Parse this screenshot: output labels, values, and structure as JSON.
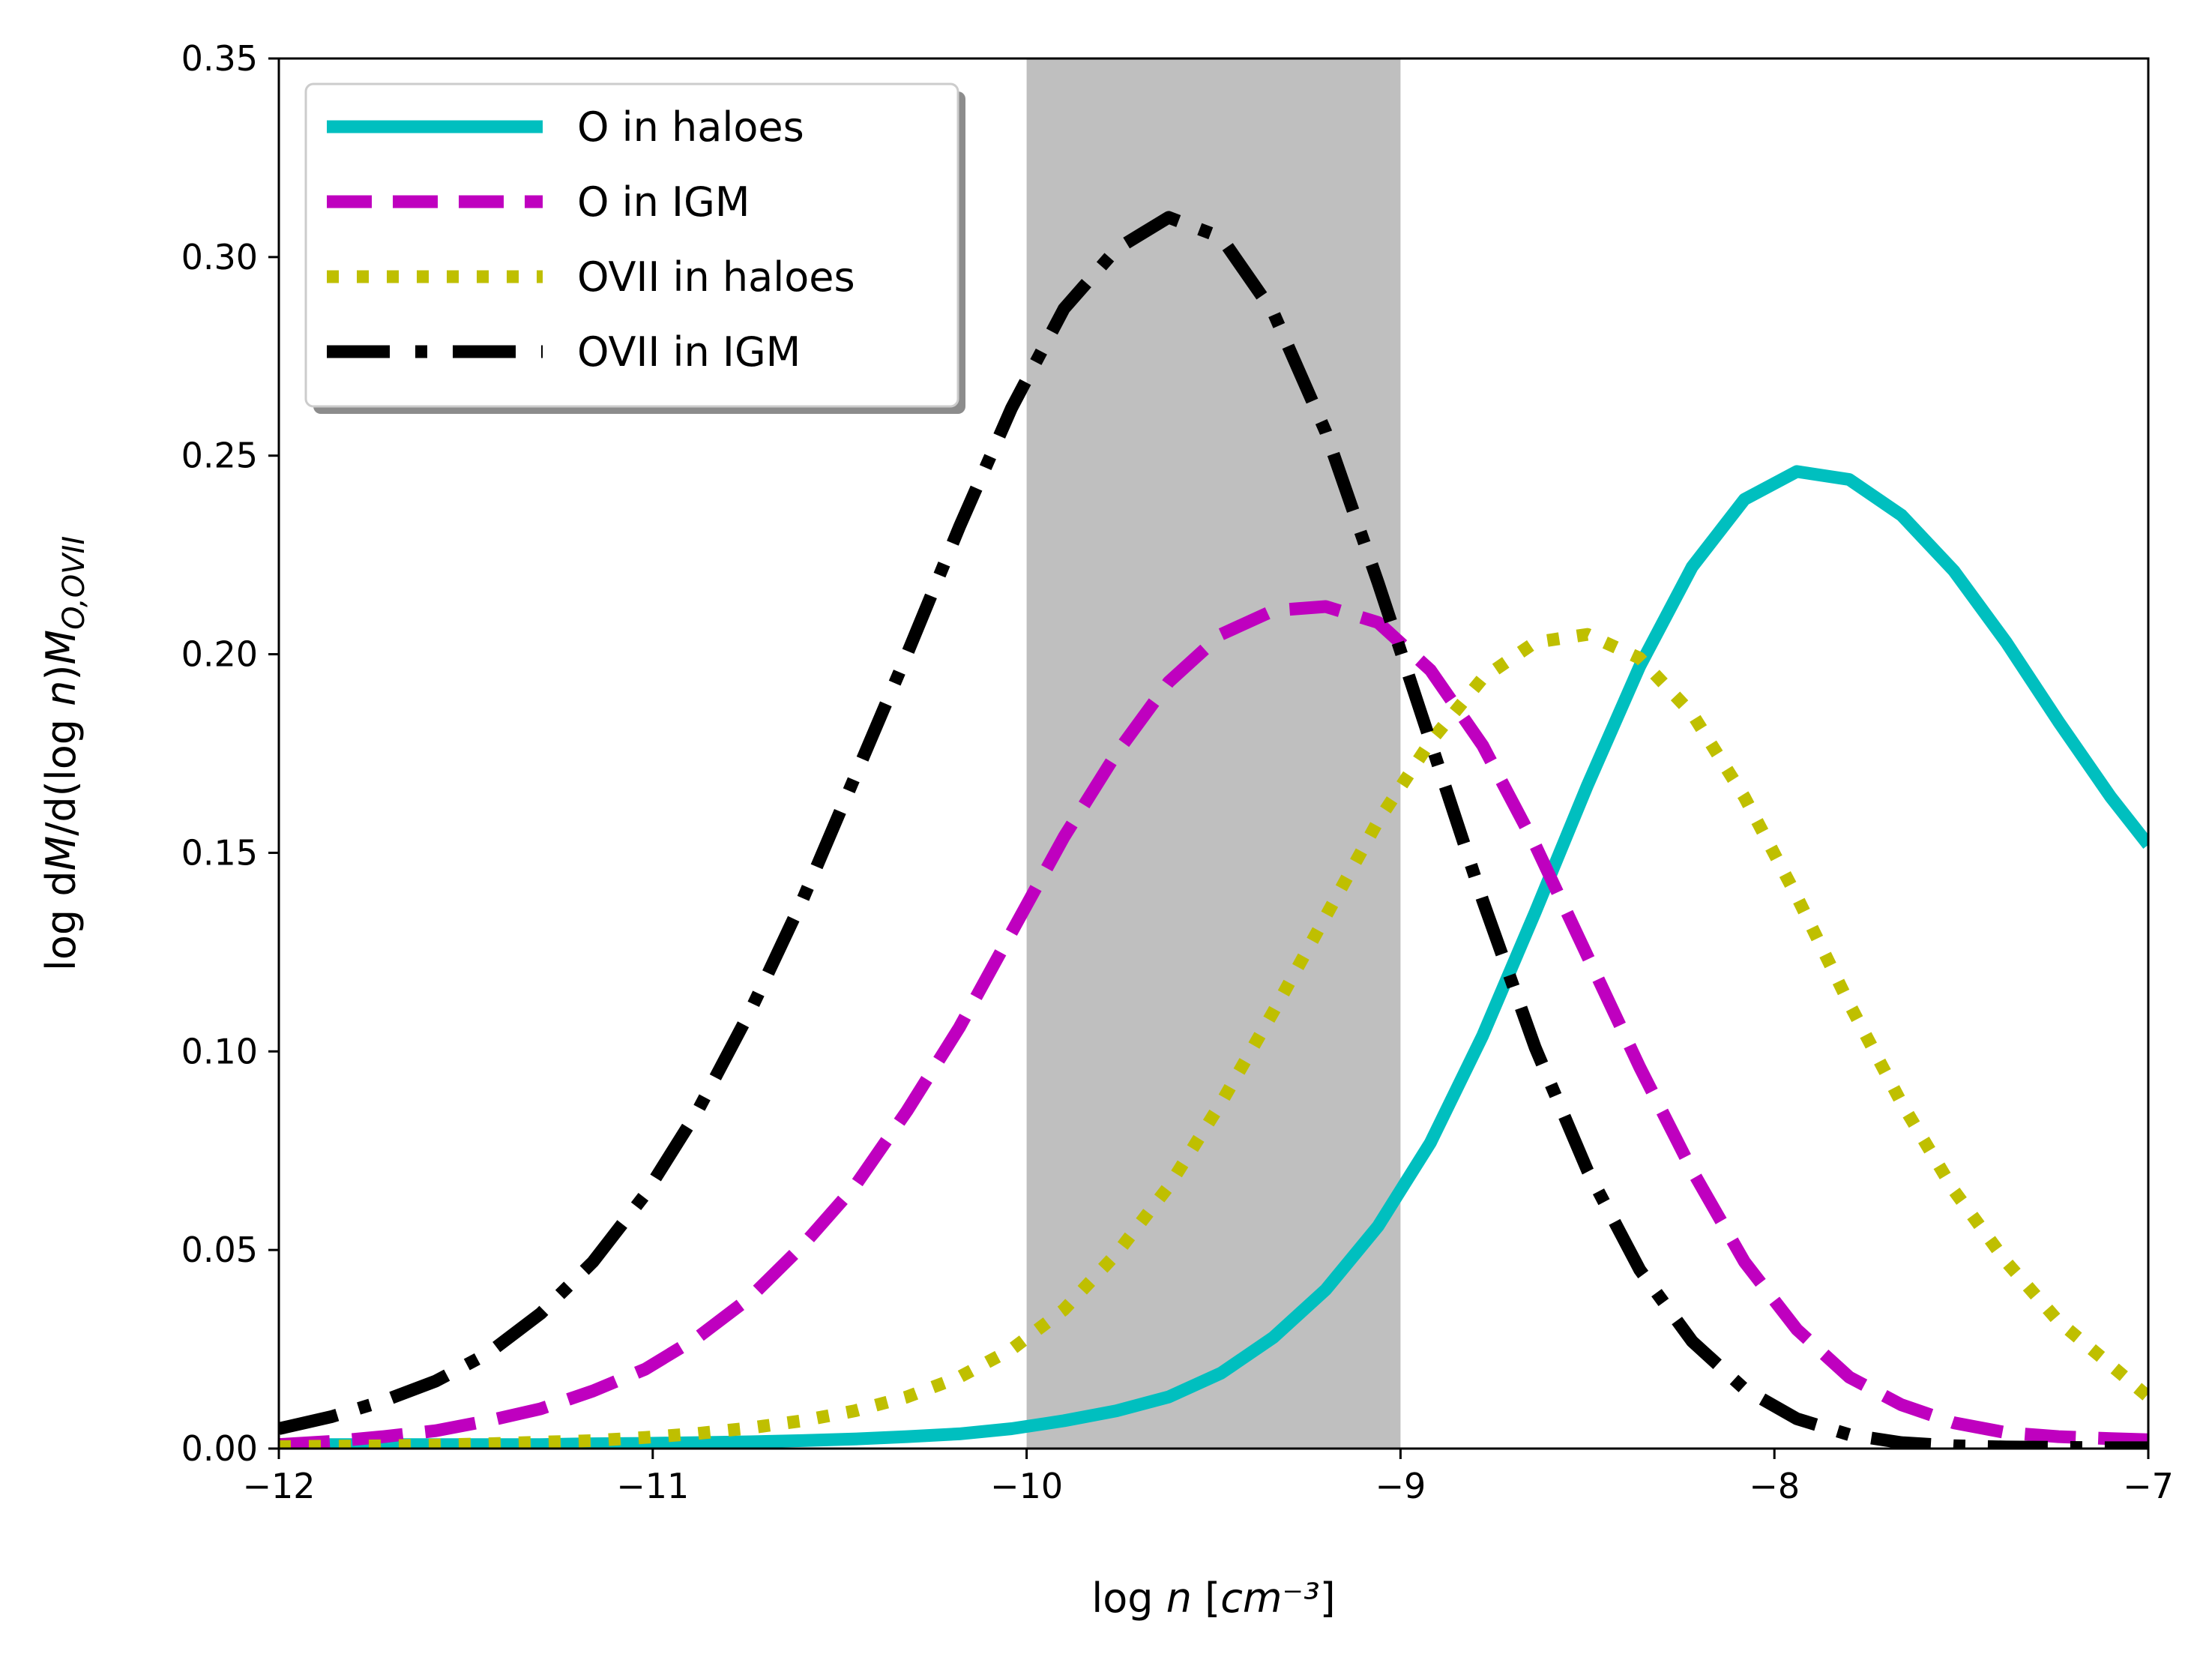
{
  "chart_data": {
    "type": "line",
    "xlabel": "log n [cm⁻³]",
    "ylabel": "log dM/d(log n)M_{O,OVII}",
    "xlim": [
      -12,
      -7
    ],
    "ylim": [
      0,
      0.35
    ],
    "xticks": [
      -12,
      -11,
      -10,
      -9,
      -8,
      -7
    ],
    "xtick_labels": [
      "−12",
      "−11",
      "−10",
      "−9",
      "−8",
      "−7"
    ],
    "yticks": [
      0,
      0.05,
      0.1,
      0.15,
      0.2,
      0.25,
      0.3,
      0.35
    ],
    "ytick_labels": [
      "0.00",
      "0.05",
      "0.10",
      "0.15",
      "0.20",
      "0.25",
      "0.30",
      "0.35"
    ],
    "grid": false,
    "legend_position": "top-left",
    "shaded_region": {
      "x": [
        -10,
        -9
      ],
      "color": "#bfbfbf"
    },
    "x": [
      -12.0,
      -11.86,
      -11.72,
      -11.58,
      -11.44,
      -11.3,
      -11.16,
      -11.02,
      -10.88,
      -10.74,
      -10.6,
      -10.46,
      -10.32,
      -10.18,
      -10.04,
      -9.9,
      -9.76,
      -9.62,
      -9.48,
      -9.34,
      -9.2,
      -9.06,
      -8.92,
      -8.78,
      -8.64,
      -8.5,
      -8.36,
      -8.22,
      -8.08,
      -7.94,
      -7.8,
      -7.66,
      -7.52,
      -7.38,
      -7.24,
      -7.1,
      -7.0
    ],
    "series": [
      {
        "name": "O in haloes",
        "color": "#00bfbf",
        "style": "solid",
        "values": [
          0.001,
          0.001,
          0.001,
          0.001,
          0.001,
          0.001,
          0.0012,
          0.0013,
          0.0015,
          0.0017,
          0.002,
          0.0024,
          0.003,
          0.0037,
          0.005,
          0.007,
          0.0095,
          0.013,
          0.019,
          0.028,
          0.04,
          0.056,
          0.077,
          0.104,
          0.135,
          0.167,
          0.197,
          0.222,
          0.239,
          0.246,
          0.244,
          0.235,
          0.221,
          0.203,
          0.183,
          0.164,
          0.152
        ]
      },
      {
        "name": "O in IGM",
        "color": "#bf00bf",
        "style": "dashed",
        "values": [
          0.001,
          0.0018,
          0.003,
          0.0045,
          0.007,
          0.01,
          0.0145,
          0.02,
          0.028,
          0.038,
          0.051,
          0.066,
          0.085,
          0.106,
          0.13,
          0.154,
          0.175,
          0.193,
          0.205,
          0.211,
          0.212,
          0.208,
          0.196,
          0.177,
          0.152,
          0.124,
          0.096,
          0.07,
          0.047,
          0.03,
          0.018,
          0.011,
          0.0065,
          0.004,
          0.003,
          0.0025,
          0.0022
        ]
      },
      {
        "name": "OVII in haloes",
        "color": "#bfbf00",
        "style": "dotted",
        "values": [
          0.0005,
          0.0006,
          0.0007,
          0.0009,
          0.0012,
          0.0016,
          0.002,
          0.0028,
          0.0038,
          0.0052,
          0.007,
          0.0095,
          0.013,
          0.018,
          0.025,
          0.035,
          0.049,
          0.066,
          0.087,
          0.11,
          0.134,
          0.158,
          0.178,
          0.194,
          0.203,
          0.205,
          0.199,
          0.185,
          0.164,
          0.139,
          0.112,
          0.087,
          0.065,
          0.047,
          0.032,
          0.021,
          0.013
        ]
      },
      {
        "name": "OVII in IGM",
        "color": "#000000",
        "style": "dashdot",
        "values": [
          0.005,
          0.008,
          0.012,
          0.017,
          0.024,
          0.034,
          0.047,
          0.064,
          0.085,
          0.11,
          0.138,
          0.169,
          0.2,
          0.232,
          0.262,
          0.287,
          0.302,
          0.31,
          0.305,
          0.286,
          0.256,
          0.218,
          0.178,
          0.138,
          0.101,
          0.07,
          0.045,
          0.027,
          0.015,
          0.0075,
          0.0035,
          0.0015,
          0.0007,
          0.0004,
          0.0003,
          0.0002,
          0.0002
        ]
      }
    ]
  }
}
